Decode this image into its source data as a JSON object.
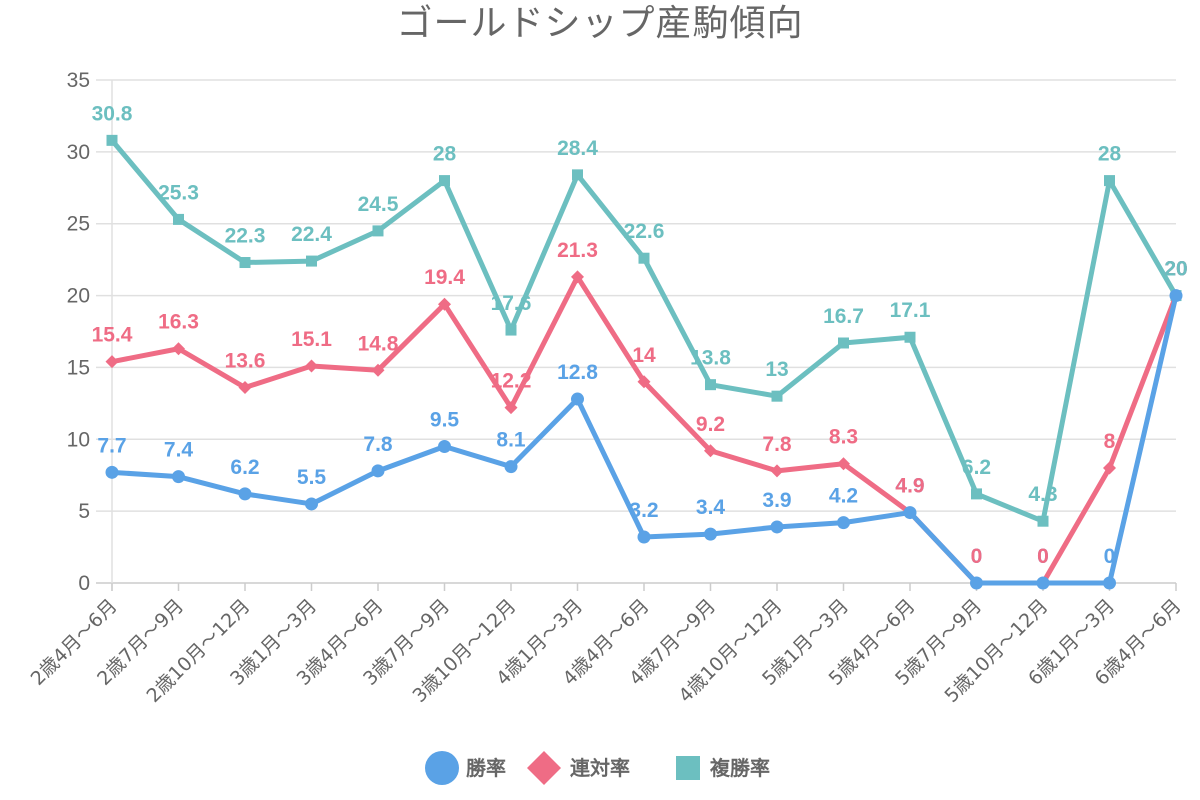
{
  "chart_data": {
    "type": "line",
    "title": "ゴールドシップ産駒傾向",
    "xlabel": "",
    "ylabel": "",
    "ylim": [
      0,
      35
    ],
    "yticks": [
      0,
      5,
      10,
      15,
      20,
      25,
      30,
      35
    ],
    "grid": true,
    "legend_position": "bottom-center",
    "categories": [
      "2歳4月～6月",
      "2歳7月～9月",
      "2歳10月～12月",
      "3歳1月～3月",
      "3歳4月～6月",
      "3歳7月～9月",
      "3歳10月～12月",
      "4歳1月～3月",
      "4歳4月～6月",
      "4歳7月～9月",
      "4歳10月～12月",
      "5歳1月～3月",
      "5歳4月～6月",
      "5歳7月～9月",
      "5歳10月～12月",
      "6歳1月～3月",
      "6歳4月～6月"
    ],
    "series": [
      {
        "name": "勝率",
        "color": "#5aa2e6",
        "marker": "circle",
        "values": [
          7.7,
          7.4,
          6.2,
          5.5,
          7.8,
          9.5,
          8.1,
          12.8,
          3.2,
          3.4,
          3.9,
          4.2,
          4.9,
          0,
          0,
          0,
          20
        ]
      },
      {
        "name": "連対率",
        "color": "#ef6c85",
        "marker": "diamond",
        "values": [
          15.4,
          16.3,
          13.6,
          15.1,
          14.8,
          19.4,
          12.2,
          21.3,
          14,
          9.2,
          7.8,
          8.3,
          4.9,
          0,
          0,
          8,
          20
        ]
      },
      {
        "name": "複勝率",
        "color": "#6cbfc0",
        "marker": "square",
        "values": [
          30.8,
          25.3,
          22.3,
          22.4,
          24.5,
          28,
          17.6,
          28.4,
          22.6,
          13.8,
          13,
          16.7,
          17.1,
          6.2,
          4.3,
          28,
          20
        ]
      }
    ]
  },
  "colors": {
    "text": "#666666",
    "grid": "#e0e0e0",
    "axis": "#cccccc"
  }
}
